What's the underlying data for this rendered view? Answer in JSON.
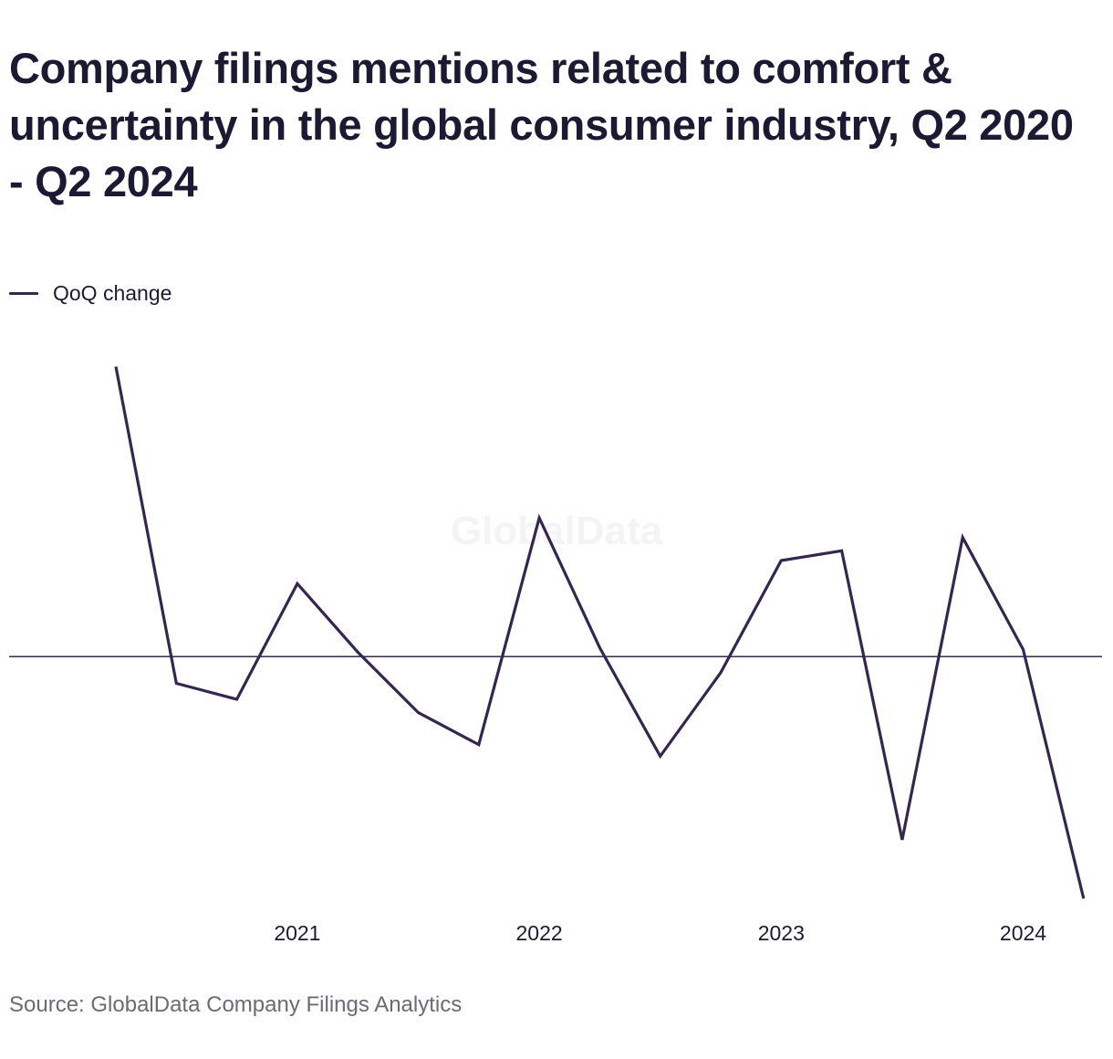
{
  "title": "Company filings mentions related to comfort & uncertainty in the global consumer industry, Q2 2020 - Q2 2024",
  "legend": {
    "label": "QoQ change",
    "color": "#35264f"
  },
  "watermark": "GlobalData",
  "source": "Source: GlobalData Company Filings Analytics",
  "chart_data": {
    "type": "line",
    "title": "Company filings mentions related to comfort & uncertainty in the global consumer industry, Q2 2020 - Q2 2024",
    "xlabel": "",
    "ylabel": "",
    "x": [
      "Q2 2020",
      "Q3 2020",
      "Q4 2020",
      "Q1 2021",
      "Q2 2021",
      "Q3 2021",
      "Q4 2021",
      "Q1 2022",
      "Q2 2022",
      "Q3 2022",
      "Q4 2022",
      "Q1 2023",
      "Q2 2023",
      "Q3 2023",
      "Q4 2023",
      "Q1 2024",
      "Q2 2024"
    ],
    "x_ticks": [
      "2021",
      "2022",
      "2023",
      "2024"
    ],
    "x_tick_positions": [
      "Q1 2021",
      "Q1 2022",
      "Q1 2023",
      "Q1 2024"
    ],
    "series": [
      {
        "name": "QoQ change",
        "color": "#35264f",
        "values": [
          32.6,
          -3.0,
          -4.8,
          8.2,
          0.5,
          -6.3,
          -9.9,
          15.6,
          1.0,
          -11.2,
          -1.8,
          10.8,
          11.9,
          -20.6,
          13.4,
          0.8,
          -27.2
        ]
      }
    ],
    "baseline": 0,
    "ylim": [
      -28,
      34
    ],
    "y_ticks_shown": false,
    "grid": false,
    "legend_position": "top-left"
  }
}
